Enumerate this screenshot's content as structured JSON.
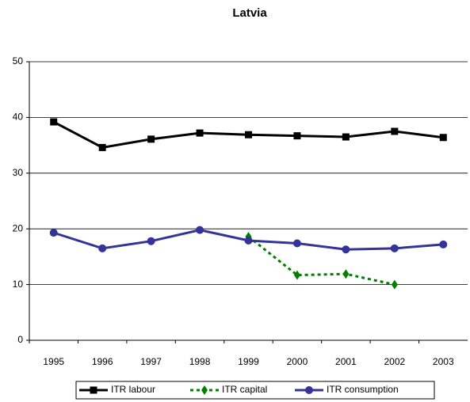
{
  "chart_data": {
    "type": "line",
    "title": "Latvia",
    "categories": [
      "1995",
      "1996",
      "1997",
      "1998",
      "1999",
      "2000",
      "2001",
      "2002",
      "2003"
    ],
    "series": [
      {
        "name": "ITR labour",
        "color": "#000000",
        "marker": "square",
        "dashed": false,
        "values": [
          39.2,
          34.6,
          36.1,
          37.2,
          36.9,
          36.7,
          36.5,
          37.5,
          36.4
        ]
      },
      {
        "name": "ITR capital",
        "color": "#008000",
        "marker": "diamond",
        "dashed": true,
        "values": [
          null,
          null,
          null,
          null,
          18.6,
          11.7,
          11.9,
          10.0,
          null
        ]
      },
      {
        "name": "ITR consumption",
        "color": "#333399",
        "marker": "circle",
        "dashed": false,
        "values": [
          19.3,
          16.5,
          17.8,
          19.8,
          17.9,
          17.4,
          16.3,
          16.5,
          17.2
        ]
      }
    ],
    "ylim": [
      0,
      50
    ],
    "yticks": [
      0,
      10,
      20,
      30,
      40,
      50
    ],
    "grid": true,
    "legend": "bottom"
  }
}
